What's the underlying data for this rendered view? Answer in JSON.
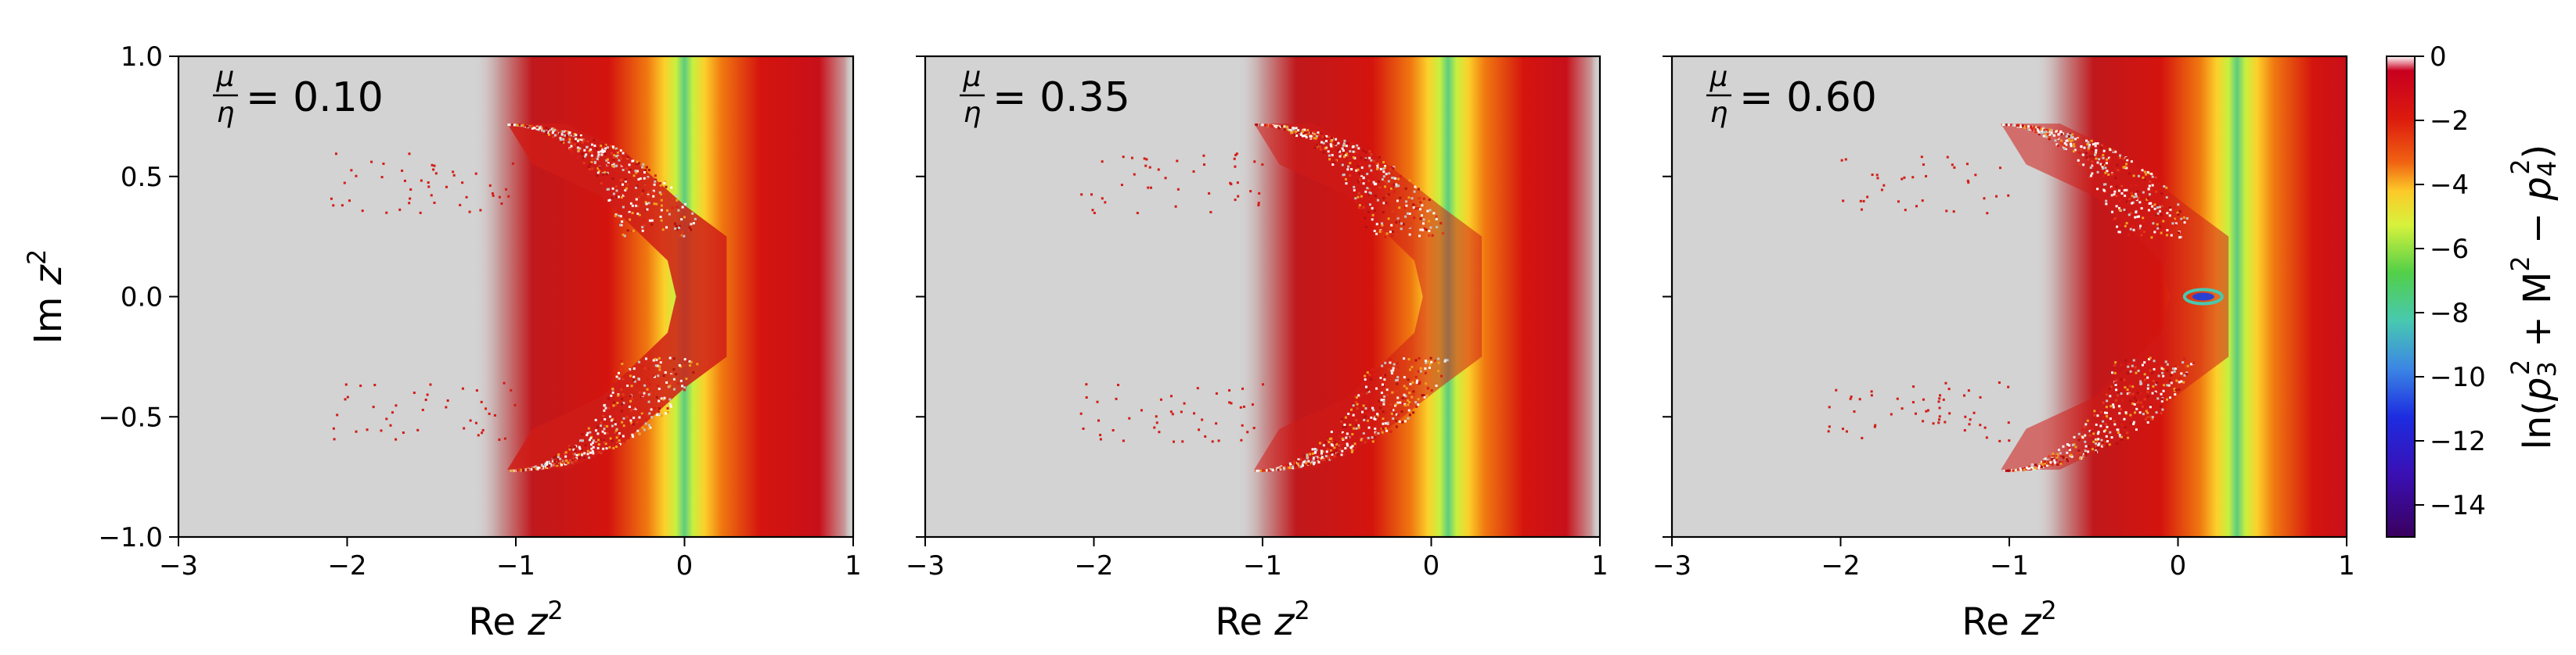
{
  "chart_data": [
    {
      "type": "heatmap",
      "panel_label": {
        "numerator": "μ",
        "denominator": "η",
        "value_text": "= 0.10"
      },
      "ratio": 0.1,
      "xlim": [
        -3,
        1
      ],
      "ylim": [
        -1,
        1
      ],
      "xlabel": {
        "text": "Re ",
        "var": "z",
        "sup": "2"
      },
      "ylabel": {
        "text": "Im ",
        "var": "z",
        "sup": "2"
      },
      "xticks": [
        "−3",
        "−2",
        "−1",
        "0",
        "1"
      ],
      "xtick_values": [
        -3,
        -2,
        -1,
        0,
        1
      ],
      "yticks": [
        "−1.0",
        "−0.5",
        "0.0",
        "0.5",
        "1.0"
      ],
      "ytick_values": [
        -1.0,
        -0.5,
        0.0,
        0.5,
        1.0
      ],
      "green_band_re": 0.0,
      "red_band_re": [
        -0.9,
        0.8
      ],
      "arc_shoulder_re": -0.05
    },
    {
      "type": "heatmap",
      "panel_label": {
        "numerator": "μ",
        "denominator": "η",
        "value_text": "= 0.35"
      },
      "ratio": 0.35,
      "xlim": [
        -3,
        1
      ],
      "ylim": [
        -1,
        1
      ],
      "xlabel": {
        "text": "Re ",
        "var": "z",
        "sup": "2"
      },
      "ylabel": {
        "text": "",
        "var": "",
        "sup": ""
      },
      "xticks": [
        "−3",
        "−2",
        "−1",
        "0",
        "1"
      ],
      "xtick_values": [
        -3,
        -2,
        -1,
        0,
        1
      ],
      "yticks": [],
      "ytick_values": [],
      "green_band_re": 0.1,
      "red_band_re": [
        -0.8,
        0.8
      ],
      "arc_shoulder_re": 0.0
    },
    {
      "type": "heatmap",
      "panel_label": {
        "numerator": "μ",
        "denominator": "η",
        "value_text": "= 0.60"
      },
      "ratio": 0.6,
      "xlim": [
        -3,
        1
      ],
      "ylim": [
        -1,
        1
      ],
      "xlabel": {
        "text": "Re ",
        "var": "z",
        "sup": "2"
      },
      "ylabel": {
        "text": "",
        "var": "",
        "sup": ""
      },
      "xticks": [
        "−3",
        "−2",
        "−1",
        "0",
        "1"
      ],
      "xtick_values": [
        -3,
        -2,
        -1,
        0,
        1
      ],
      "yticks": [],
      "ytick_values": [],
      "green_band_re": 0.35,
      "red_band_re": [
        -0.5,
        1.0
      ],
      "arc_shoulder_re": 0.0,
      "minimum_point": {
        "re": 0.15,
        "im": 0.0
      }
    }
  ],
  "colorbar": {
    "range": [
      -15,
      0
    ],
    "ticks": [
      "0",
      "−2",
      "−4",
      "−6",
      "−8",
      "−10",
      "−12",
      "−14"
    ],
    "tick_values": [
      0,
      -2,
      -4,
      -6,
      -8,
      -10,
      -12,
      -14
    ],
    "colors": [
      "#ffffff",
      "#b8001e",
      "#dc1e0e",
      "#f46a10",
      "#fcd52a",
      "#d6f23a",
      "#5fd04a",
      "#48c9a8",
      "#3b8ee0",
      "#2030e0",
      "#3a0fb8",
      "#3a0060"
    ],
    "label": {
      "prefix": "ln(",
      "p": "p",
      "sub": "3",
      "sup": "2",
      "middle": " + M",
      "sup2": "2",
      "minus": " − ",
      "p2": "p",
      "sub2": "4",
      "sup3": "2",
      "suffix": ")"
    }
  },
  "background_color": "#d3d3d3"
}
